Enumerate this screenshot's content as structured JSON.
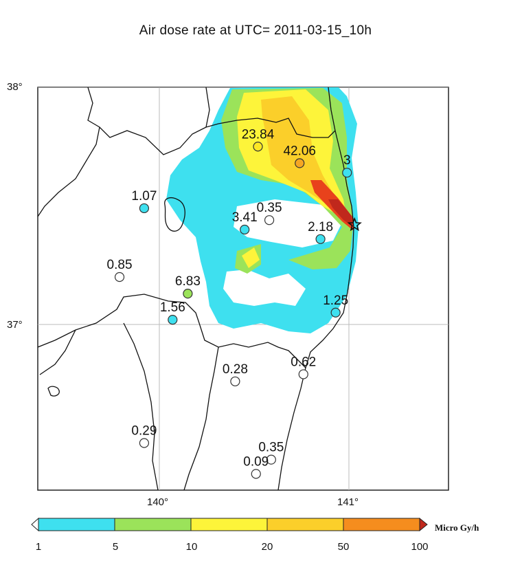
{
  "title": "Air dose rate at UTC= 2011-03-15_10h",
  "axes": {
    "lat_labels": [
      {
        "text": "38°",
        "lat": 38
      },
      {
        "text": "37°",
        "lat": 37
      }
    ],
    "lon_labels": [
      {
        "text": "140°",
        "lon": 140
      },
      {
        "text": "141°",
        "lon": 141
      }
    ]
  },
  "map_extent": {
    "lon_min": 139.45,
    "lon_max": 141.4,
    "lat_min": 36.32,
    "lat_max": 38.02
  },
  "source_marker": {
    "icon": "star-icon",
    "lon": 141.03,
    "lat": 37.42
  },
  "stations": [
    {
      "value": "23.84",
      "lon": 140.52,
      "lat": 37.75,
      "color": "#fde725"
    },
    {
      "value": "42.06",
      "lon": 140.74,
      "lat": 37.68,
      "color": "#f5a623"
    },
    {
      "value": "3",
      "lon": 140.99,
      "lat": 37.64,
      "color": "#3ee0ef"
    },
    {
      "value": "1.07",
      "lon": 139.92,
      "lat": 37.49,
      "color": "#3ee0ef"
    },
    {
      "value": "0.35",
      "lon": 140.58,
      "lat": 37.44,
      "color": "#ffffff"
    },
    {
      "value": "3.41",
      "lon": 140.45,
      "lat": 37.4,
      "color": "#3ee0ef"
    },
    {
      "value": "2.18",
      "lon": 140.85,
      "lat": 37.36,
      "color": "#3ee0ef"
    },
    {
      "value": "0.85",
      "lon": 139.79,
      "lat": 37.2,
      "color": "#ffffff"
    },
    {
      "value": "6.83",
      "lon": 140.15,
      "lat": 37.13,
      "color": "#9be35a"
    },
    {
      "value": "1.56",
      "lon": 140.07,
      "lat": 37.02,
      "color": "#3ee0ef"
    },
    {
      "value": "1.25",
      "lon": 140.93,
      "lat": 37.05,
      "color": "#3ee0ef"
    },
    {
      "value": "0.62",
      "lon": 140.76,
      "lat": 36.79,
      "color": "#ffffff"
    },
    {
      "value": "0.28",
      "lon": 140.4,
      "lat": 36.76,
      "color": "#ffffff"
    },
    {
      "value": "0.29",
      "lon": 139.92,
      "lat": 36.5,
      "color": "#ffffff"
    },
    {
      "value": "0.35",
      "lon": 140.59,
      "lat": 36.43,
      "color": "#ffffff"
    },
    {
      "value": "0.09",
      "lon": 140.51,
      "lat": 36.37,
      "color": "#ffffff"
    }
  ],
  "colorbar": {
    "ticks": [
      "1",
      "5",
      "10",
      "20",
      "50",
      "100"
    ],
    "unit": "Micro Gy/h",
    "colors": [
      "#3ee0ef",
      "#9be35a",
      "#fdf43a",
      "#fbcf2a",
      "#f58d1e"
    ],
    "end_colors": {
      "low": "#ffffff",
      "high": "#c0281c"
    }
  }
}
